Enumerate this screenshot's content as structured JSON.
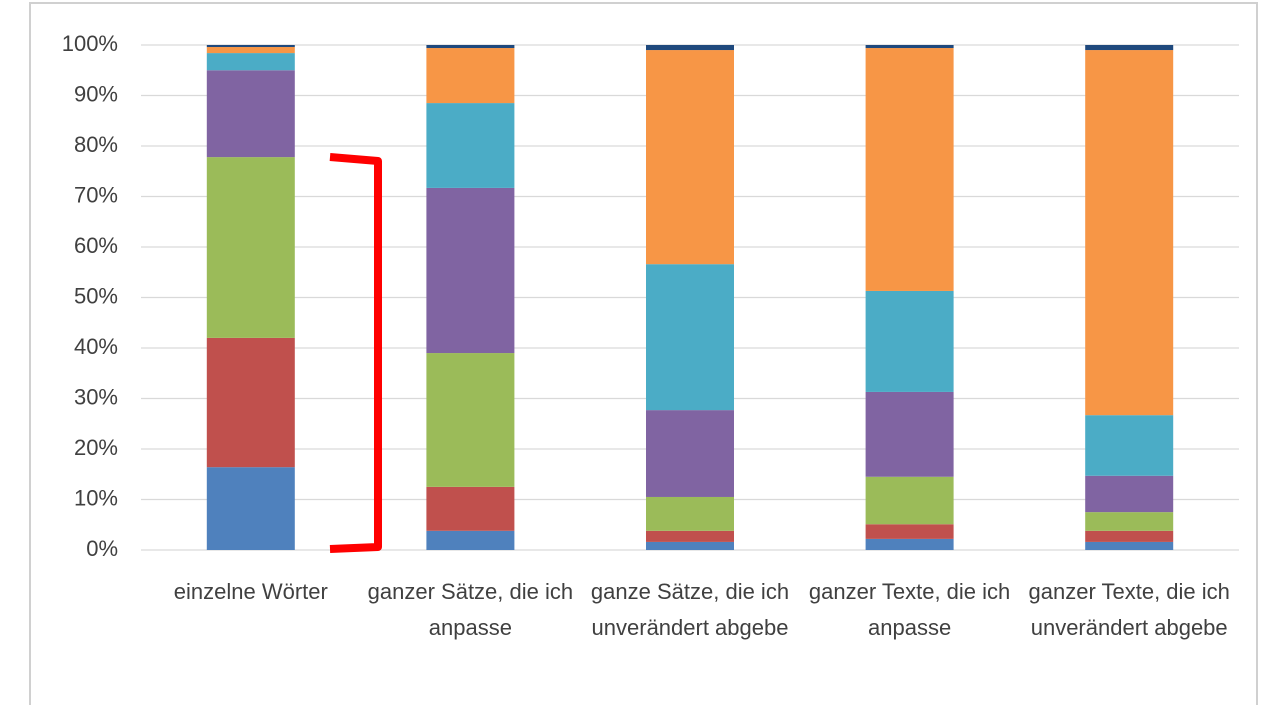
{
  "chart_data": {
    "type": "stacked_bar",
    "categories": [
      "einzelne Wörter",
      "ganzer Sätze, die ich anpasse",
      "ganze Sätze, die ich unverändert abgebe",
      "ganzer Texte, die ich anpasse",
      "ganzer Texte, die ich unverändert abgebe"
    ],
    "series": [
      {
        "color": "#4f81bd",
        "values": [
          16.4,
          3.8,
          1.6,
          2.2,
          1.6
        ]
      },
      {
        "color": "#c0504d",
        "values": [
          25.6,
          8.7,
          2.2,
          2.9,
          2.2
        ]
      },
      {
        "color": "#9bbb59",
        "values": [
          35.8,
          26.5,
          6.7,
          9.4,
          3.7
        ]
      },
      {
        "color": "#8064a2",
        "values": [
          17.2,
          32.7,
          17.2,
          16.8,
          7.2
        ]
      },
      {
        "color": "#4bacc6",
        "values": [
          3.4,
          16.8,
          28.9,
          20.0,
          12.0
        ]
      },
      {
        "color": "#f79646",
        "values": [
          1.2,
          10.9,
          42.4,
          48.1,
          72.3
        ]
      },
      {
        "color": "#1f497d",
        "values": [
          0.4,
          0.6,
          1.0,
          0.6,
          1.0
        ]
      }
    ],
    "ylim": [
      0,
      100
    ],
    "yticks": [
      {
        "value": 0,
        "label": "0%"
      },
      {
        "value": 10,
        "label": "10%"
      },
      {
        "value": 20,
        "label": "20%"
      },
      {
        "value": 30,
        "label": "30%"
      },
      {
        "value": 40,
        "label": "40%"
      },
      {
        "value": 50,
        "label": "50%"
      },
      {
        "value": 60,
        "label": "60%"
      },
      {
        "value": 70,
        "label": "70%"
      },
      {
        "value": 80,
        "label": "80%"
      },
      {
        "value": 90,
        "label": "90%"
      },
      {
        "value": 100,
        "label": "100%"
      }
    ],
    "grid": true
  }
}
